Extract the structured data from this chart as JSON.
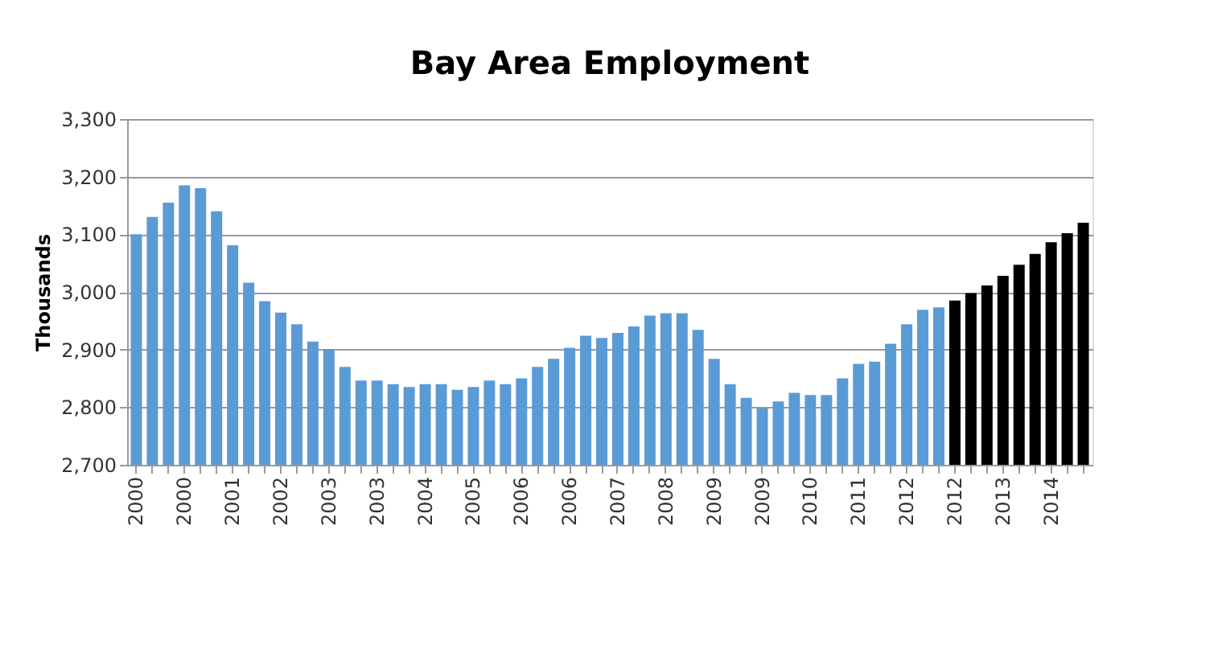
{
  "chart_data": {
    "type": "bar",
    "title": "Bay Area  Employment",
    "ylabel": "Thousands",
    "categories": [
      "2000",
      null,
      null,
      "2000",
      null,
      null,
      "2001",
      null,
      null,
      "2002",
      null,
      null,
      "2003",
      null,
      null,
      "2003",
      null,
      null,
      "2004",
      null,
      null,
      "2005",
      null,
      null,
      "2006",
      null,
      null,
      "2006",
      null,
      null,
      "2007",
      null,
      null,
      "2008",
      null,
      null,
      "2009",
      null,
      null,
      "2009",
      null,
      null,
      "2010",
      null,
      null,
      "2011",
      null,
      null,
      "2012",
      null,
      null,
      "2012",
      null,
      null,
      "2013",
      null,
      null,
      "2014",
      null,
      null
    ],
    "values": [
      3100,
      3130,
      3155,
      3185,
      3180,
      3140,
      3081,
      3016,
      2984,
      2964,
      2944,
      2914,
      2901,
      2870,
      2846,
      2846,
      2840,
      2835,
      2840,
      2840,
      2830,
      2835,
      2846,
      2840,
      2850,
      2870,
      2884,
      2903,
      2924,
      2920,
      2929,
      2940,
      2959,
      2963,
      2963,
      2934,
      2884,
      2840,
      2816,
      2798,
      2810,
      2825,
      2821,
      2821,
      2850,
      2875,
      2879,
      2910,
      2944,
      2969,
      2973,
      2985,
      2998,
      3011,
      3028,
      3047,
      3066,
      3086,
      3102,
      3120
    ],
    "colors": [
      "#5b9bd5",
      "#5b9bd5",
      "#5b9bd5",
      "#5b9bd5",
      "#5b9bd5",
      "#5b9bd5",
      "#5b9bd5",
      "#5b9bd5",
      "#5b9bd5",
      "#5b9bd5",
      "#5b9bd5",
      "#5b9bd5",
      "#5b9bd5",
      "#5b9bd5",
      "#5b9bd5",
      "#5b9bd5",
      "#5b9bd5",
      "#5b9bd5",
      "#5b9bd5",
      "#5b9bd5",
      "#5b9bd5",
      "#5b9bd5",
      "#5b9bd5",
      "#5b9bd5",
      "#5b9bd5",
      "#5b9bd5",
      "#5b9bd5",
      "#5b9bd5",
      "#5b9bd5",
      "#5b9bd5",
      "#5b9bd5",
      "#5b9bd5",
      "#5b9bd5",
      "#5b9bd5",
      "#5b9bd5",
      "#5b9bd5",
      "#5b9bd5",
      "#5b9bd5",
      "#5b9bd5",
      "#5b9bd5",
      "#5b9bd5",
      "#5b9bd5",
      "#5b9bd5",
      "#5b9bd5",
      "#5b9bd5",
      "#5b9bd5",
      "#5b9bd5",
      "#5b9bd5",
      "#5b9bd5",
      "#5b9bd5",
      "#5b9bd5",
      "#000000",
      "#000000",
      "#000000",
      "#000000",
      "#000000",
      "#000000",
      "#000000",
      "#000000",
      "#000000"
    ],
    "ylim": [
      2700,
      3300
    ],
    "yticks": [
      {
        "value": 2700,
        "label": "2,700"
      },
      {
        "value": 2800,
        "label": "2,800"
      },
      {
        "value": 2900,
        "label": "2,900"
      },
      {
        "value": 3000,
        "label": "3,000"
      },
      {
        "value": 3100,
        "label": "3,100"
      },
      {
        "value": 3200,
        "label": "3,200"
      },
      {
        "value": 3300,
        "label": "3,300"
      }
    ],
    "grid": "y"
  }
}
